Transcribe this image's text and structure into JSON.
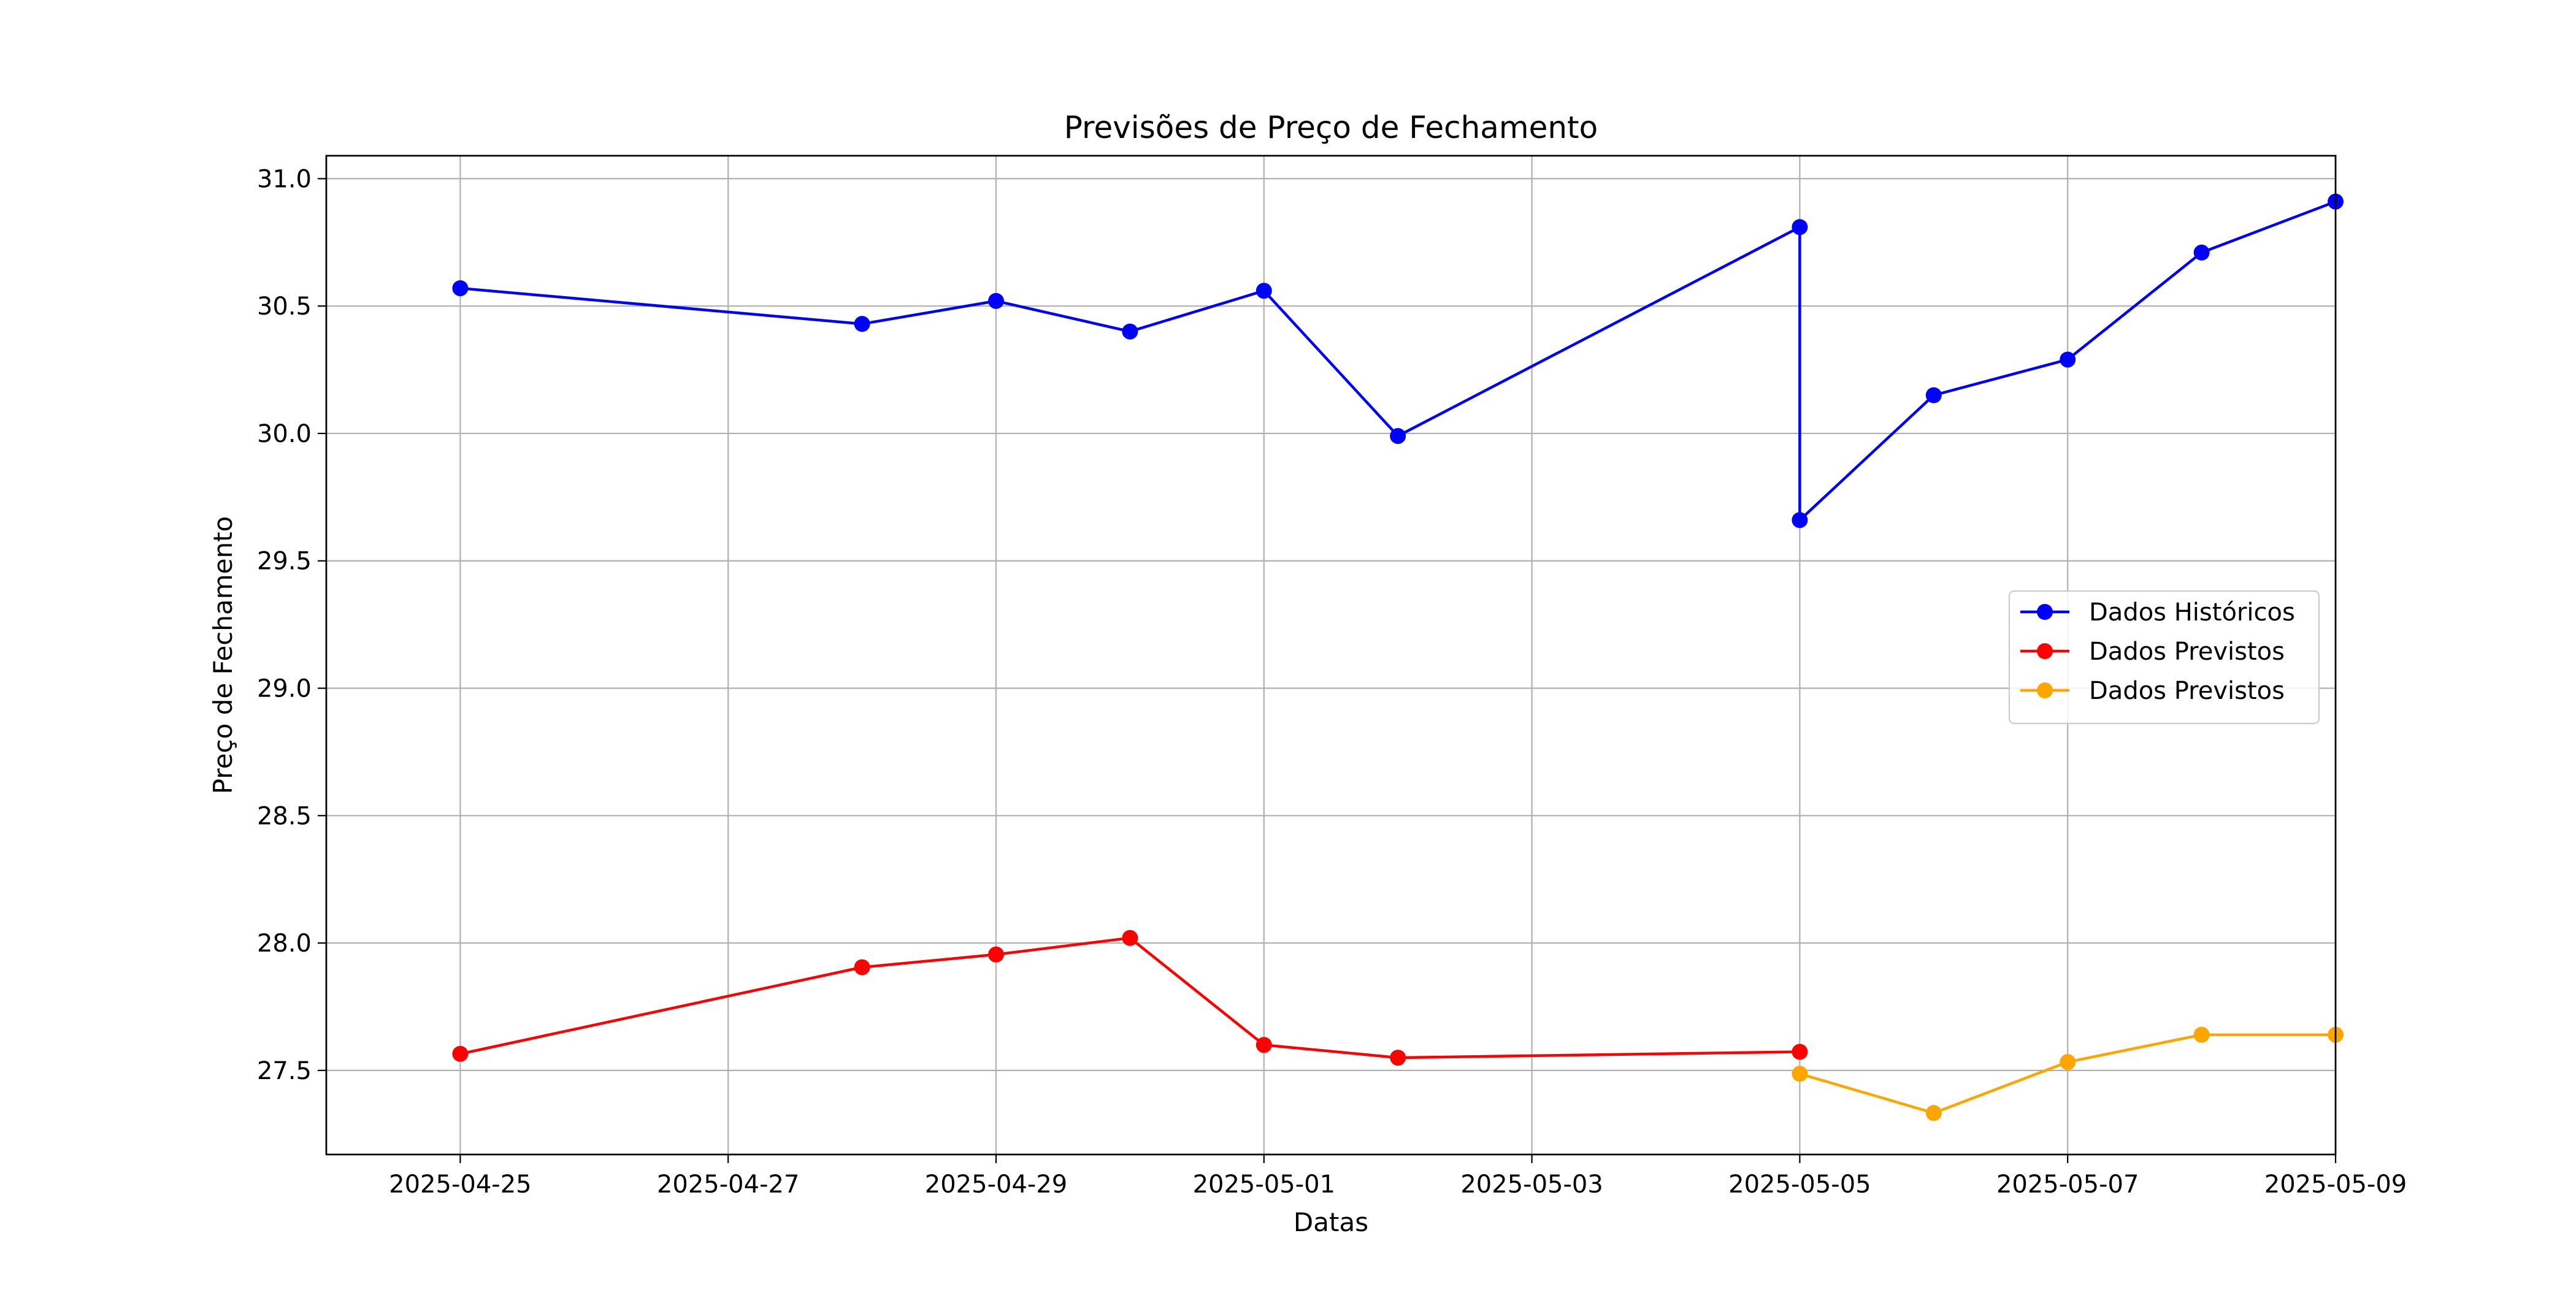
{
  "chart_data": {
    "type": "line",
    "title": "Previsões de Preço de Fechamento",
    "xlabel": "Datas",
    "ylabel": "Preço de Fechamento",
    "x_axis": {
      "type": "date",
      "min": "2025-04-24",
      "max": "2025-05-09",
      "ticks": [
        "2025-04-25",
        "2025-04-27",
        "2025-04-29",
        "2025-05-01",
        "2025-05-03",
        "2025-05-05",
        "2025-05-07",
        "2025-05-09"
      ]
    },
    "y_axis": {
      "min": 27.17,
      "max": 31.09,
      "ticks": [
        27.5,
        28.0,
        28.5,
        29.0,
        29.5,
        30.0,
        30.5,
        31.0
      ],
      "tick_labels": [
        "27.5",
        "28.0",
        "28.5",
        "29.0",
        "29.5",
        "30.0",
        "30.5",
        "31.0"
      ]
    },
    "grid": true,
    "legend_position": "center-right",
    "series": [
      {
        "name": "Dados Históricos",
        "color": "#0000ff",
        "marker": "circle",
        "points": [
          {
            "x": "2025-04-25",
            "y": 30.57
          },
          {
            "x": "2025-04-28",
            "y": 30.43
          },
          {
            "x": "2025-04-29",
            "y": 30.52
          },
          {
            "x": "2025-04-30",
            "y": 30.4
          },
          {
            "x": "2025-05-01",
            "y": 30.56
          },
          {
            "x": "2025-05-02",
            "y": 29.99
          },
          {
            "x": "2025-05-05",
            "y": 30.81
          },
          {
            "x": "2025-05-05",
            "y": 29.66
          },
          {
            "x": "2025-05-06",
            "y": 30.15
          },
          {
            "x": "2025-05-07",
            "y": 30.29
          },
          {
            "x": "2025-05-08",
            "y": 30.71
          },
          {
            "x": "2025-05-09",
            "y": 30.91
          }
        ]
      },
      {
        "name": "Dados Previstos",
        "color": "#ff0000",
        "marker": "circle",
        "points": [
          {
            "x": "2025-04-25",
            "y": 27.565
          },
          {
            "x": "2025-04-28",
            "y": 27.905
          },
          {
            "x": "2025-04-29",
            "y": 27.955
          },
          {
            "x": "2025-04-30",
            "y": 28.02
          },
          {
            "x": "2025-05-01",
            "y": 27.6
          },
          {
            "x": "2025-05-02",
            "y": 27.55
          },
          {
            "x": "2025-05-05",
            "y": 27.573
          }
        ]
      },
      {
        "name": "Dados Previstos",
        "color": "#ffa500",
        "marker": "circle",
        "points": [
          {
            "x": "2025-05-05",
            "y": 27.487
          },
          {
            "x": "2025-05-06",
            "y": 27.333
          },
          {
            "x": "2025-05-07",
            "y": 27.533
          },
          {
            "x": "2025-05-08",
            "y": 27.64
          },
          {
            "x": "2025-05-09",
            "y": 27.64
          }
        ]
      }
    ]
  }
}
